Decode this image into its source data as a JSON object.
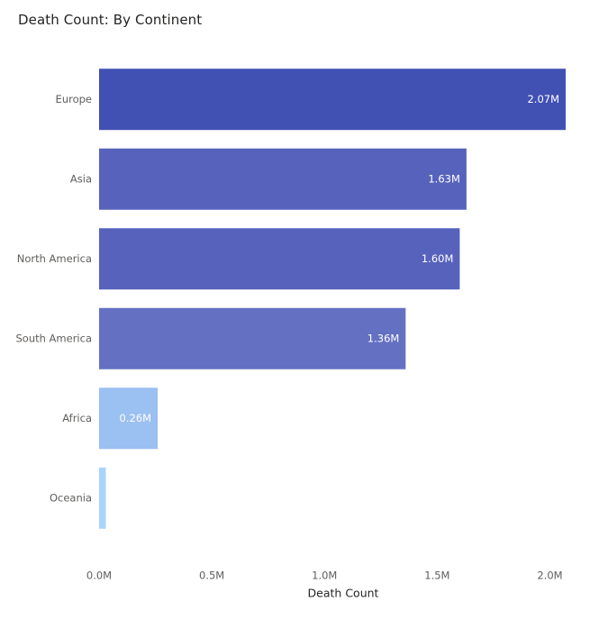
{
  "chart_data": {
    "type": "bar",
    "orientation": "horizontal",
    "title": "Death Count: By Continent",
    "xlabel": "Death Count",
    "ylabel": "",
    "categories": [
      "Europe",
      "Asia",
      "North America",
      "South America",
      "Africa",
      "Oceania"
    ],
    "values": [
      2070000,
      1630000,
      1600000,
      1360000,
      260000,
      30000
    ],
    "data_labels": [
      "2.07M",
      "1.63M",
      "1.60M",
      "1.36M",
      "0.26M",
      ""
    ],
    "bar_colors": [
      "#4150B3",
      "#5762BC",
      "#5762BC",
      "#6470C2",
      "#9BC0F2",
      "#A9D4FB"
    ],
    "xlim": [
      0,
      2070000
    ],
    "x_ticks": [
      0,
      500000,
      1000000,
      1500000,
      2000000
    ],
    "x_tick_labels": [
      "0.0M",
      "0.5M",
      "1.0M",
      "1.5M",
      "2.0M"
    ],
    "grid": false,
    "legend": "none"
  }
}
